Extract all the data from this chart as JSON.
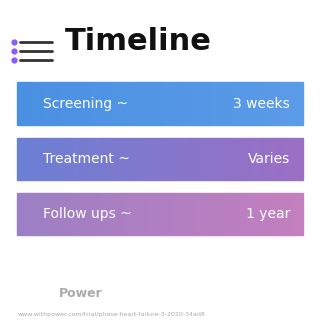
{
  "title": "Timeline",
  "title_fontsize": 22,
  "title_color": "#111111",
  "title_icon_color": "#8B5CF6",
  "background_color": "#ffffff",
  "rows": [
    {
      "label": "Screening ~",
      "value": "3 weeks",
      "color_left": "#4A90E2",
      "color_right": "#5B9BE8"
    },
    {
      "label": "Treatment ~",
      "value": "Varies",
      "color_left": "#6B7FD4",
      "color_right": "#9B6FC4"
    },
    {
      "label": "Follow ups ~",
      "value": "1 year",
      "color_left": "#9B7FC4",
      "color_right": "#C47FBE"
    }
  ],
  "footer_text": "Power",
  "footer_color": "#aaaaaa",
  "url_text": "www.withpower.com/trial/phase-heart-failure-3-2020-34ad8",
  "url_color": "#aaaaaa"
}
